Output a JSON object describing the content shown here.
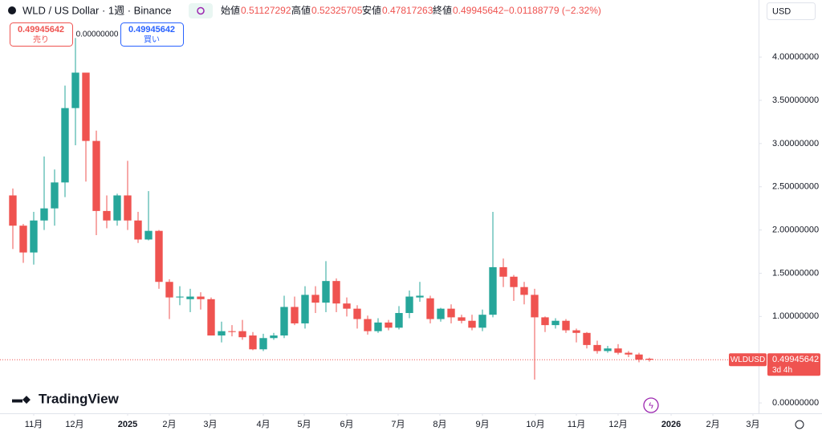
{
  "chart_data": {
    "type": "candlestick",
    "title": "WLD / US Dollar · 1週 · Binance",
    "header": {
      "open_label": "始値",
      "high_label": "高値",
      "low_label": "安値",
      "close_label": "終値",
      "change": "−0.01188779 (−2.32%)"
    },
    "trade": {
      "sell_price": "0.49945642",
      "sell_label": "売り",
      "spread": "0.00000000",
      "buy_price": "0.49945642",
      "buy_label": "買い"
    },
    "currency": "USD",
    "symbol_label": "WLDUSD",
    "countdown": "3d 4h",
    "brand": "TradingView",
    "up_color": "#26a69a",
    "down_color": "#ef5350",
    "grid": false,
    "series": {
      "open": [
        2.4,
        2.05,
        1.74,
        2.11,
        2.25,
        2.55,
        3.41,
        3.82,
        3.03,
        2.22,
        2.11,
        2.4,
        2.11,
        1.89,
        1.99,
        1.4,
        1.22,
        1.2,
        1.23,
        1.2,
        0.78,
        0.83,
        0.83,
        0.78,
        0.62,
        0.75,
        0.78,
        1.11,
        0.92,
        1.25,
        1.16,
        1.41,
        1.15,
        1.09,
        0.97,
        0.83,
        0.93,
        0.87,
        1.04,
        1.22,
        1.21,
        0.97,
        1.09,
        0.99,
        0.95,
        0.87,
        1.02,
        1.57,
        1.46,
        1.34,
        1.25,
        0.99,
        0.9,
        0.95,
        0.84,
        0.81,
        0.67,
        0.6,
        0.63,
        0.58,
        0.56,
        0.51127292
      ],
      "high": [
        2.48,
        2.07,
        2.21,
        2.85,
        2.7,
        3.67,
        4.22,
        3.82,
        3.15,
        2.4,
        2.42,
        2.8,
        2.21,
        2.45,
        2.0,
        1.43,
        1.35,
        1.32,
        1.28,
        1.22,
        0.94,
        0.9,
        0.96,
        0.82,
        0.8,
        0.81,
        1.24,
        1.23,
        1.35,
        1.35,
        1.64,
        1.44,
        1.22,
        1.13,
        1.01,
        0.98,
        0.96,
        1.12,
        1.3,
        1.4,
        1.24,
        1.1,
        1.14,
        1.02,
        1.02,
        1.08,
        2.21,
        1.67,
        1.48,
        1.4,
        1.32,
        1.0,
        0.98,
        0.97,
        0.86,
        0.82,
        0.72,
        0.66,
        0.68,
        0.6,
        0.58,
        0.52325705
      ],
      "low": [
        1.78,
        1.62,
        1.6,
        2.0,
        2.05,
        2.38,
        2.98,
        2.56,
        1.94,
        2.02,
        2.05,
        2.0,
        1.85,
        1.88,
        1.32,
        0.97,
        1.13,
        1.05,
        1.08,
        0.78,
        0.7,
        0.77,
        0.73,
        0.61,
        0.6,
        0.73,
        0.75,
        0.9,
        0.86,
        1.04,
        1.05,
        1.05,
        1.0,
        0.86,
        0.79,
        0.81,
        0.84,
        0.85,
        0.98,
        1.17,
        0.92,
        0.94,
        0.92,
        0.92,
        0.84,
        0.83,
        0.99,
        1.34,
        1.18,
        1.14,
        0.27,
        0.82,
        0.86,
        0.81,
        0.7,
        0.63,
        0.57,
        0.58,
        0.56,
        0.53,
        0.47,
        0.47817263
      ],
      "close": [
        2.05,
        1.74,
        2.11,
        2.25,
        2.55,
        3.41,
        3.82,
        3.03,
        2.22,
        2.11,
        2.4,
        2.11,
        1.89,
        1.99,
        1.4,
        1.22,
        1.23,
        1.23,
        1.2,
        0.78,
        0.83,
        0.82,
        0.76,
        0.62,
        0.75,
        0.78,
        1.11,
        0.92,
        1.25,
        1.16,
        1.41,
        1.15,
        1.09,
        0.97,
        0.83,
        0.93,
        0.87,
        1.04,
        1.23,
        1.24,
        0.97,
        1.09,
        0.99,
        0.95,
        0.87,
        1.02,
        1.57,
        1.46,
        1.34,
        1.25,
        0.99,
        0.9,
        0.95,
        0.84,
        0.81,
        0.67,
        0.6,
        0.63,
        0.58,
        0.56,
        0.5,
        0.49945642
      ]
    },
    "xlim": [
      -1.23,
      71.46
    ],
    "xticks": [
      {
        "value": 2.0,
        "label": "11月"
      },
      {
        "value": 5.92,
        "label": "12月"
      },
      {
        "value": 11.0,
        "label": "2025"
      },
      {
        "value": 15.0,
        "label": "2月"
      },
      {
        "value": 18.92,
        "label": "3月"
      },
      {
        "value": 24.0,
        "label": "4月"
      },
      {
        "value": 27.92,
        "label": "5月"
      },
      {
        "value": 32.0,
        "label": "6月"
      },
      {
        "value": 36.92,
        "label": "7月"
      },
      {
        "value": 40.92,
        "label": "8月"
      },
      {
        "value": 45.0,
        "label": "9月"
      },
      {
        "value": 50.08,
        "label": "10月"
      },
      {
        "value": 54.0,
        "label": "11月"
      },
      {
        "value": 58.0,
        "label": "12月"
      },
      {
        "value": 63.08,
        "label": "2026"
      },
      {
        "value": 67.08,
        "label": "2月"
      },
      {
        "value": 70.92,
        "label": "3月"
      }
    ],
    "ylim": [
      -0.12,
      4.66
    ],
    "yticks": [
      {
        "value": 0,
        "label": "0.00000000"
      },
      {
        "value": 1,
        "label": "1.00000000"
      },
      {
        "value": 1.5,
        "label": "1.50000000"
      },
      {
        "value": 2,
        "label": "2.00000000"
      },
      {
        "value": 2.5,
        "label": "2.50000000"
      },
      {
        "value": 3,
        "label": "3.00000000"
      },
      {
        "value": 3.5,
        "label": "3.50000000"
      },
      {
        "value": 4,
        "label": "4.00000000"
      }
    ]
  }
}
